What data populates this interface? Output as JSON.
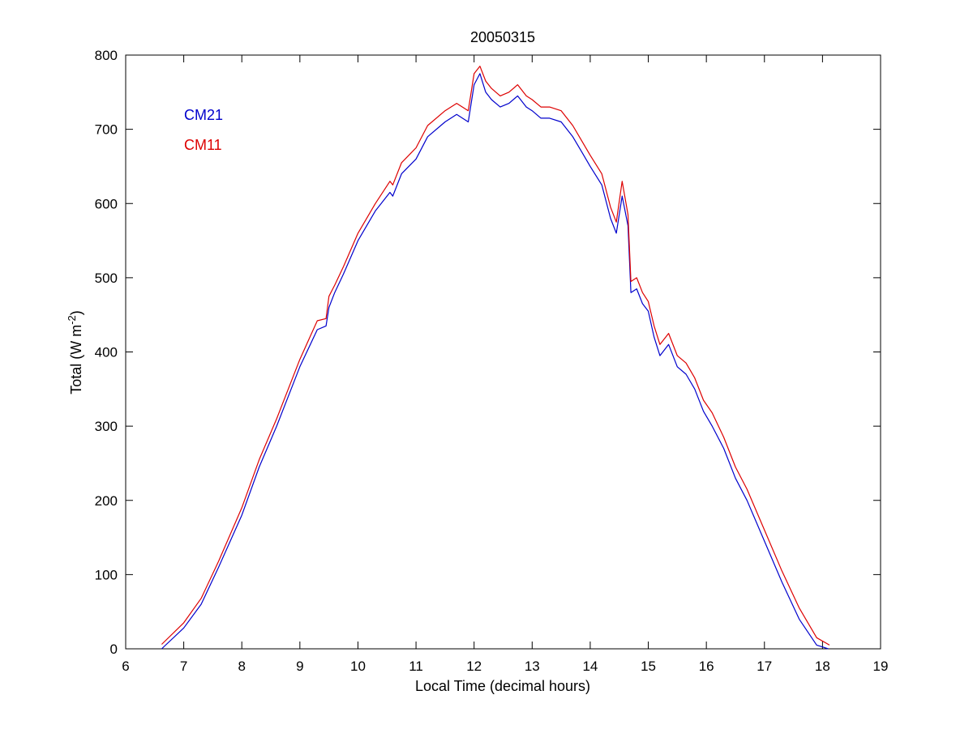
{
  "chart_data": {
    "type": "line",
    "title": "20050315",
    "xlabel": "Local Time (decimal hours)",
    "ylabel": "Total (W m",
    "ylabel_superscript": "-2",
    "ylabel_suffix": ")",
    "xlim": [
      6,
      19
    ],
    "ylim": [
      0,
      800
    ],
    "xticks": [
      "6",
      "7",
      "8",
      "9",
      "10",
      "11",
      "12",
      "13",
      "14",
      "15",
      "16",
      "17",
      "18",
      "19"
    ],
    "yticks": [
      "0",
      "100",
      "200",
      "300",
      "400",
      "500",
      "600",
      "700",
      "800"
    ],
    "grid": false,
    "legend_position": "top-left",
    "series": [
      {
        "name": "CM21",
        "color": "#0000cc",
        "x": [
          6.62,
          7.0,
          7.3,
          7.6,
          8.0,
          8.3,
          8.6,
          9.0,
          9.3,
          9.45,
          9.5,
          9.6,
          9.75,
          10.0,
          10.3,
          10.55,
          10.6,
          10.75,
          11.0,
          11.2,
          11.5,
          11.7,
          11.9,
          12.0,
          12.1,
          12.2,
          12.3,
          12.45,
          12.6,
          12.75,
          12.9,
          13.0,
          13.15,
          13.3,
          13.5,
          13.7,
          13.85,
          14.0,
          14.2,
          14.35,
          14.45,
          14.55,
          14.65,
          14.7,
          14.8,
          14.9,
          15.0,
          15.1,
          15.2,
          15.35,
          15.5,
          15.65,
          15.8,
          15.95,
          16.1,
          16.3,
          16.5,
          16.7,
          17.0,
          17.3,
          17.6,
          17.9,
          18.1
        ],
        "y": [
          0,
          28,
          60,
          110,
          180,
          245,
          300,
          380,
          430,
          435,
          460,
          480,
          505,
          550,
          590,
          615,
          610,
          640,
          660,
          690,
          710,
          720,
          710,
          760,
          775,
          750,
          740,
          730,
          735,
          745,
          730,
          725,
          715,
          715,
          710,
          690,
          670,
          650,
          625,
          580,
          560,
          610,
          570,
          480,
          485,
          465,
          455,
          420,
          395,
          410,
          380,
          370,
          350,
          320,
          300,
          270,
          230,
          200,
          145,
          90,
          40,
          5,
          0
        ]
      },
      {
        "name": "CM11",
        "color": "#dd0000",
        "x": [
          6.62,
          7.0,
          7.3,
          7.6,
          8.0,
          8.3,
          8.6,
          9.0,
          9.3,
          9.45,
          9.5,
          9.6,
          9.75,
          10.0,
          10.3,
          10.55,
          10.6,
          10.75,
          11.0,
          11.2,
          11.5,
          11.7,
          11.9,
          12.0,
          12.1,
          12.2,
          12.3,
          12.45,
          12.6,
          12.75,
          12.9,
          13.0,
          13.15,
          13.3,
          13.5,
          13.7,
          13.85,
          14.0,
          14.2,
          14.35,
          14.45,
          14.55,
          14.65,
          14.7,
          14.8,
          14.9,
          15.0,
          15.1,
          15.2,
          15.35,
          15.5,
          15.65,
          15.8,
          15.95,
          16.1,
          16.3,
          16.5,
          16.7,
          17.0,
          17.3,
          17.6,
          17.9,
          18.12
        ],
        "y": [
          6,
          35,
          68,
          118,
          190,
          255,
          310,
          390,
          442,
          445,
          475,
          490,
          515,
          560,
          600,
          630,
          625,
          655,
          675,
          705,
          725,
          735,
          725,
          775,
          785,
          765,
          755,
          745,
          750,
          760,
          745,
          740,
          730,
          730,
          725,
          705,
          685,
          665,
          640,
          595,
          575,
          630,
          585,
          495,
          500,
          480,
          468,
          435,
          410,
          425,
          395,
          385,
          365,
          335,
          318,
          285,
          245,
          215,
          160,
          105,
          55,
          15,
          5
        ]
      }
    ]
  }
}
